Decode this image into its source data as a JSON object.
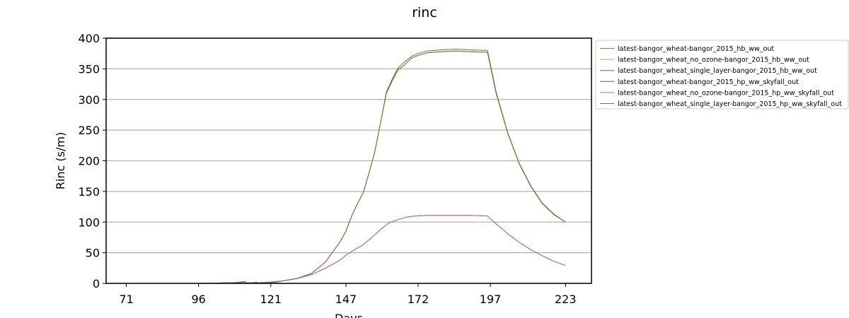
{
  "chart_data": {
    "type": "line",
    "title": "rinc",
    "xlabel": "Days",
    "ylabel": "Rinc (s/m)",
    "xlim": [
      64,
      232
    ],
    "ylim": [
      0,
      400
    ],
    "xticks": [
      71,
      96,
      121,
      147,
      172,
      197,
      223
    ],
    "yticks": [
      0,
      50,
      100,
      150,
      200,
      250,
      300,
      350,
      400
    ],
    "grid": "horizontal",
    "legend_position": "outside-right",
    "series": [
      {
        "name": "latest-bangor_wheat-bangor_2015_hb_ww_out",
        "color": "#4ea05a",
        "x": [
          71,
          96,
          108,
          112,
          113,
          116,
          117,
          120,
          123,
          125,
          130,
          135,
          140,
          145,
          147,
          149,
          151,
          153,
          155,
          157,
          159,
          161,
          163,
          165,
          167,
          168,
          170,
          172,
          175,
          180,
          185,
          190,
          196,
          199,
          203,
          207,
          211,
          215,
          219,
          223
        ],
        "y": [
          0,
          0,
          1,
          3,
          0,
          2,
          0,
          1,
          2,
          4,
          8,
          16,
          35,
          68,
          85,
          110,
          130,
          148,
          180,
          215,
          262,
          310,
          330,
          348,
          355,
          360,
          368,
          372,
          376,
          378,
          379,
          378,
          377,
          310,
          245,
          195,
          158,
          130,
          112,
          100
        ]
      },
      {
        "name": "latest-bangor_wheat_no_ozone-bangor_2015_hb_ww_out",
        "color": "#d4a54a",
        "x": [
          71,
          96,
          108,
          112,
          113,
          116,
          117,
          120,
          123,
          125,
          130,
          135,
          140,
          145,
          147,
          149,
          151,
          153,
          155,
          157,
          159,
          161,
          163,
          165,
          167,
          168,
          170,
          172,
          175,
          180,
          185,
          190,
          196,
          199,
          203,
          207,
          211,
          215,
          219,
          223
        ],
        "y": [
          0,
          0,
          1,
          3,
          0,
          2,
          0,
          1,
          2,
          4,
          8,
          16,
          35,
          68,
          85,
          110,
          130,
          148,
          180,
          215,
          262,
          312,
          333,
          351,
          360,
          364,
          371,
          375,
          379,
          381,
          382,
          381,
          380,
          312,
          246,
          196,
          159,
          131,
          113,
          100
        ]
      },
      {
        "name": "latest-bangor_wheat_single_layer-bangor_2015_hb_ww_out",
        "color": "#3f8a3f",
        "x": [
          71,
          96,
          108,
          112,
          113,
          116,
          117,
          120,
          123,
          125,
          130,
          135,
          140,
          145,
          147,
          149,
          151,
          153,
          155,
          157,
          159,
          161,
          163,
          165,
          167,
          168,
          170,
          172,
          175,
          180,
          185,
          190,
          196,
          199,
          203,
          207,
          211,
          215,
          219,
          223
        ],
        "y": [
          0,
          0,
          1,
          3,
          0,
          2,
          0,
          1,
          2,
          4,
          8,
          16,
          35,
          68,
          85,
          110,
          130,
          148,
          180,
          215,
          262,
          310,
          330,
          348,
          355,
          360,
          368,
          372,
          376,
          378,
          379,
          378,
          377,
          310,
          245,
          195,
          158,
          130,
          112,
          100
        ]
      },
      {
        "name": "latest-bangor_wheat-bangor_2015_hp_ww_skyfall_out",
        "color": "#a03a62",
        "x": [
          71,
          96,
          108,
          112,
          116,
          120,
          125,
          130,
          135,
          140,
          145,
          147,
          150,
          153,
          156,
          159,
          162,
          165,
          168,
          171,
          175,
          180,
          185,
          190,
          196,
          199,
          203,
          207,
          211,
          215,
          219,
          223
        ],
        "y": [
          0,
          0,
          1,
          1,
          1,
          2,
          4,
          8,
          14,
          25,
          38,
          46,
          55,
          63,
          75,
          88,
          99,
          104,
          108,
          110,
          111,
          111,
          111,
          111,
          110,
          97,
          81,
          67,
          55,
          45,
          36,
          29
        ]
      },
      {
        "name": "latest-bangor_wheat_no_ozone-bangor_2015_hp_ww_skyfall_out",
        "color": "#b266c8",
        "x": [
          71,
          96,
          108,
          112,
          116,
          120,
          125,
          130,
          135,
          140,
          145,
          147,
          150,
          153,
          156,
          159,
          162,
          165,
          168,
          171,
          175,
          180,
          185,
          190,
          196,
          199,
          203,
          207,
          211,
          215,
          219,
          223
        ],
        "y": [
          0,
          0,
          1,
          1,
          1,
          2,
          4,
          8,
          14,
          25,
          38,
          46,
          55,
          63,
          75,
          88,
          99,
          104,
          108,
          110,
          111,
          111,
          111,
          111,
          110,
          97,
          81,
          67,
          55,
          45,
          36,
          29
        ]
      },
      {
        "name": "latest-bangor_wheat_single_layer-bangor_2015_hp_ww_skyfall_out",
        "color": "#7a7a45",
        "x": [
          71,
          96,
          108,
          112,
          113,
          116,
          117,
          120,
          123,
          125,
          130,
          135,
          140,
          145,
          147,
          149,
          151,
          153,
          155,
          157,
          159,
          161,
          163,
          165,
          167,
          168,
          170,
          172,
          175,
          180,
          185,
          190,
          196,
          199,
          203,
          207,
          211,
          215,
          219,
          223
        ],
        "y": [
          0,
          0,
          1,
          3,
          0,
          2,
          0,
          1,
          2,
          4,
          8,
          16,
          35,
          68,
          85,
          110,
          130,
          148,
          180,
          215,
          262,
          312,
          333,
          351,
          360,
          364,
          371,
          375,
          379,
          381,
          382,
          381,
          380,
          312,
          246,
          196,
          159,
          131,
          113,
          100
        ]
      }
    ]
  }
}
